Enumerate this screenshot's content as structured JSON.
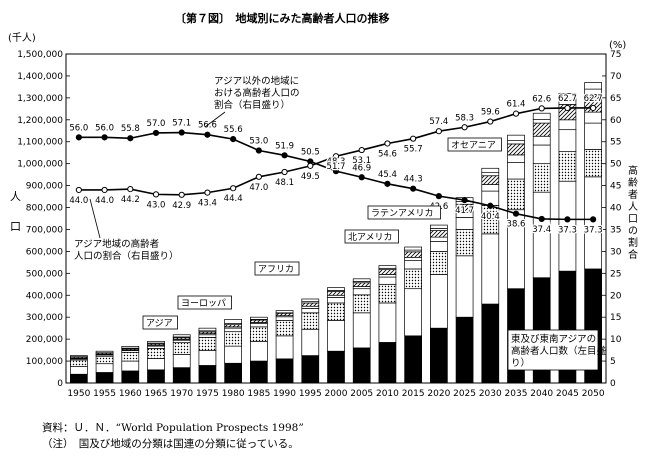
{
  "chart_data": {
    "type": "bar",
    "title": "〔第７図〕　地域別にみた高齢者人口の推移",
    "y_left_unit": "(千人)",
    "y_left_label": "人口",
    "y_right_unit": "(%)",
    "y_right_label": "高齢者人口の割合",
    "ylim_left": [
      0,
      1500000
    ],
    "ylim_right": [
      0,
      75
    ],
    "categories": [
      "1950",
      "1955",
      "1960",
      "1965",
      "1970",
      "1975",
      "1980",
      "1985",
      "1990",
      "1995",
      "2000",
      "2005",
      "2010",
      "2015",
      "2020",
      "2025",
      "2030",
      "2035",
      "2040",
      "2045",
      "2050"
    ],
    "y_ticks_left": [
      "0",
      "100,000",
      "200,000",
      "300,000",
      "400,000",
      "500,000",
      "600,000",
      "700,000",
      "800,000",
      "900,000",
      "1,000,000",
      "1,100,000",
      "1,200,000",
      "1,300,000",
      "1,400,000",
      "1,500,000"
    ],
    "y_ticks_right": [
      "0",
      "5",
      "10",
      "15",
      "20",
      "25",
      "30",
      "35",
      "40",
      "45",
      "50",
      "55",
      "60",
      "65",
      "70",
      "75"
    ],
    "bar_series": [
      {
        "name": "東及び東南アジアの高齢者人口数（左目盛り）",
        "fill": "#000000",
        "values": [
          40000,
          48000,
          55000,
          60000,
          70000,
          80000,
          90000,
          100000,
          110000,
          125000,
          145000,
          160000,
          185000,
          215000,
          250000,
          300000,
          360000,
          430000,
          480000,
          510000,
          520000
        ]
      },
      {
        "name": "",
        "fill": "#ffffff",
        "values": [
          35000,
          40000,
          45000,
          52000,
          60000,
          68000,
          78000,
          90000,
          105000,
          120000,
          140000,
          160000,
          180000,
          215000,
          245000,
          280000,
          320000,
          360000,
          390000,
          410000,
          420000
        ]
      },
      {
        "name": "アジア",
        "fill": "dots",
        "values": [
          30000,
          34000,
          40000,
          46000,
          54000,
          60000,
          66000,
          66000,
          70000,
          75000,
          80000,
          82000,
          85000,
          90000,
          105000,
          120000,
          130000,
          140000,
          130000,
          135000,
          125000
        ]
      },
      {
        "name": "ヨーロッパ",
        "fill": "#ffffff",
        "values": [
          5000,
          6000,
          8000,
          10000,
          11000,
          12000,
          16000,
          15000,
          17000,
          20000,
          25000,
          28000,
          33000,
          38000,
          45000,
          55000,
          65000,
          75000,
          85000,
          100000,
          120000
        ]
      },
      {
        "name": "アフリカ",
        "fill": "#ffffff",
        "values": [
          3000,
          3000,
          3000,
          4000,
          4000,
          5000,
          6000,
          5000,
          5000,
          10000,
          10000,
          10000,
          12000,
          15000,
          20000,
          25000,
          30000,
          35000,
          40000,
          45000,
          50000
        ]
      },
      {
        "name": "北アメリカ",
        "fill": "hatch",
        "values": [
          5000,
          5000,
          5000,
          6000,
          7000,
          8000,
          10000,
          11000,
          11000,
          15000,
          17000,
          17000,
          22000,
          25000,
          30000,
          35000,
          40000,
          50000,
          60000,
          70000,
          80000
        ]
      },
      {
        "name": "ラテンアメリカ",
        "fill": "#ffffff",
        "values": [
          2000,
          2000,
          3000,
          4000,
          4000,
          5000,
          5000,
          3000,
          2000,
          6000,
          5000,
          6000,
          6000,
          8000,
          10000,
          12000,
          14000,
          15000,
          16000,
          20000,
          25000
        ]
      },
      {
        "name": "オセアニア",
        "fill": "#ffffff",
        "values": [
          5000,
          7000,
          8000,
          8000,
          10000,
          12000,
          19000,
          10000,
          10000,
          12000,
          13000,
          12000,
          12000,
          14000,
          15000,
          18000,
          20000,
          25000,
          29000,
          30000,
          30000
        ]
      }
    ],
    "line_series": [
      {
        "name": "アジア以外の地域における高齢者人口の割合（右目盛り）",
        "marker": "filled",
        "values": [
          56.0,
          56.0,
          55.8,
          57.0,
          57.1,
          56.6,
          55.6,
          53.0,
          51.9,
          50.5,
          48.3,
          46.9,
          45.4,
          44.3,
          42.6,
          41.7,
          40.4,
          38.6,
          37.4,
          37.3,
          37.3
        ],
        "labels": [
          "56.0",
          "56.0",
          "55.8",
          "57.0",
          "57.1",
          "56.6",
          "55.6",
          "53.0",
          "51.9",
          "50.5",
          "48.3",
          "46.9",
          "45.4",
          "44.3",
          "42.6",
          "41.7",
          "40.4",
          "38.6",
          "37.4",
          "37.3",
          "37.3"
        ]
      },
      {
        "name": "アジア地域の高齢者人口の割合（右目盛り）",
        "marker": "open",
        "values": [
          44.0,
          44.0,
          44.2,
          43.0,
          42.9,
          43.4,
          44.4,
          47.0,
          48.1,
          49.5,
          51.7,
          53.1,
          54.6,
          55.7,
          57.4,
          58.3,
          59.6,
          61.4,
          62.6,
          62.7,
          62.7
        ],
        "labels": [
          "44.0",
          "44.0",
          "44.2",
          "43.0",
          "42.9",
          "43.4",
          "44.4",
          "47.0",
          "48.1",
          "49.5",
          "51.7",
          "53.1",
          "54.6",
          "55.7",
          "57.4",
          "58.3",
          "59.6",
          "61.4",
          "62.6",
          "62.7",
          "62.7"
        ]
      }
    ],
    "region_labels": [
      "アジア",
      "ヨーロッパ",
      "アフリカ",
      "北アメリカ",
      "ラテンアメリカ",
      "オセアニア"
    ],
    "annotations": {
      "non_asia": [
        "アジア以外の地域に",
        "おける高齢者人口の",
        "割合（右目盛り）"
      ],
      "asia": [
        "アジア地域の高齢者",
        "人口の割合（右目盛り）"
      ],
      "east_asia": [
        "東及び東南アジアの",
        "高齢者人口数（左目盛",
        "り）"
      ]
    },
    "legend": "none",
    "grid": false
  },
  "notes": {
    "source": "資料：Ｕ．Ｎ．“World Population Prospects 1998”",
    "note": "（注）　国及び地域の分類は国連の分類に従っている。"
  }
}
